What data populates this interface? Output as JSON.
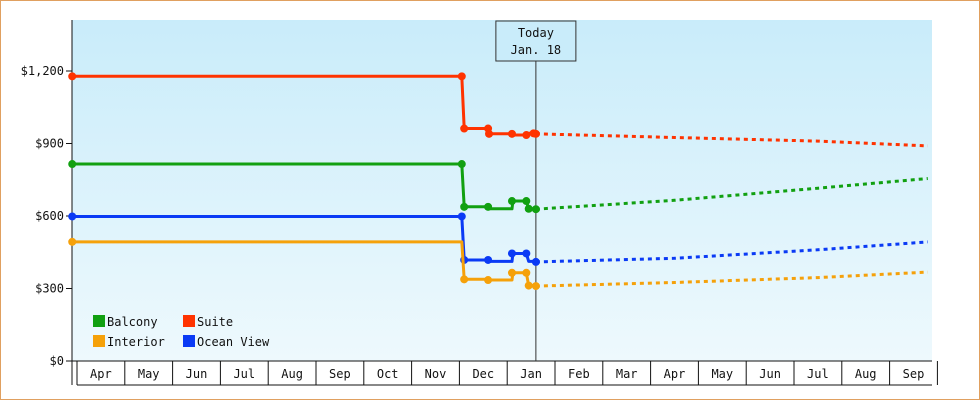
{
  "chart_data": {
    "type": "line",
    "y_ticks": [
      "$0",
      "$300",
      "$600",
      "$900",
      "$1,200"
    ],
    "y_tick_values": [
      0,
      300,
      600,
      900,
      1200
    ],
    "ylim": [
      0,
      1200
    ],
    "x_months": [
      "Apr",
      "May",
      "Jun",
      "Jul",
      "Aug",
      "Sep",
      "Oct",
      "Nov",
      "Dec",
      "Jan",
      "Feb",
      "Mar",
      "Apr",
      "May",
      "Jun",
      "Jul",
      "Aug",
      "Sep"
    ],
    "today": {
      "line1": "Today",
      "line2": "Jan. 18",
      "x": 9.6
    },
    "legend": [
      {
        "name": "Balcony",
        "color": "#11a011"
      },
      {
        "name": "Suite",
        "color": "#ff3300"
      },
      {
        "name": "Interior",
        "color": "#f5a10a"
      },
      {
        "name": "Ocean View",
        "color": "#0a3af5"
      }
    ],
    "series": [
      {
        "name": "Suite",
        "color": "#ff3300",
        "history": [
          [
            -0.1,
            1178
          ],
          [
            8.05,
            1178
          ],
          [
            8.1,
            962
          ],
          [
            8.6,
            962
          ],
          [
            8.62,
            940
          ],
          [
            9.1,
            940
          ],
          [
            9.12,
            935
          ],
          [
            9.4,
            935
          ],
          [
            9.45,
            942
          ],
          [
            9.55,
            942
          ],
          [
            9.6,
            940
          ]
        ],
        "markers": [
          [
            -0.1,
            1178
          ],
          [
            8.05,
            1178
          ],
          [
            8.1,
            962
          ],
          [
            8.6,
            962
          ],
          [
            8.62,
            940
          ],
          [
            9.1,
            940
          ],
          [
            9.4,
            935
          ],
          [
            9.55,
            942
          ],
          [
            9.6,
            940
          ]
        ],
        "forecast": [
          [
            9.6,
            940
          ],
          [
            12.5,
            925
          ],
          [
            15.5,
            910
          ],
          [
            17.8,
            890
          ]
        ]
      },
      {
        "name": "Balcony",
        "color": "#11a011",
        "history": [
          [
            -0.1,
            815
          ],
          [
            8.05,
            815
          ],
          [
            8.1,
            638
          ],
          [
            8.6,
            638
          ],
          [
            8.62,
            630
          ],
          [
            9.1,
            630
          ],
          [
            9.12,
            662
          ],
          [
            9.4,
            662
          ],
          [
            9.45,
            630
          ],
          [
            9.55,
            630
          ],
          [
            9.6,
            628
          ]
        ],
        "markers": [
          [
            -0.1,
            815
          ],
          [
            8.05,
            815
          ],
          [
            8.1,
            638
          ],
          [
            8.6,
            638
          ],
          [
            9.1,
            662
          ],
          [
            9.4,
            662
          ],
          [
            9.45,
            630
          ],
          [
            9.6,
            628
          ]
        ],
        "forecast": [
          [
            9.6,
            628
          ],
          [
            12.5,
            665
          ],
          [
            15.5,
            715
          ],
          [
            17.8,
            755
          ]
        ]
      },
      {
        "name": "Ocean View",
        "color": "#0a3af5",
        "history": [
          [
            -0.1,
            598
          ],
          [
            8.05,
            598
          ],
          [
            8.1,
            418
          ],
          [
            8.6,
            418
          ],
          [
            8.62,
            412
          ],
          [
            9.1,
            412
          ],
          [
            9.12,
            445
          ],
          [
            9.4,
            445
          ],
          [
            9.45,
            412
          ],
          [
            9.55,
            412
          ],
          [
            9.6,
            410
          ]
        ],
        "markers": [
          [
            -0.1,
            598
          ],
          [
            8.05,
            598
          ],
          [
            8.1,
            418
          ],
          [
            8.6,
            418
          ],
          [
            9.1,
            445
          ],
          [
            9.4,
            445
          ],
          [
            9.6,
            410
          ]
        ],
        "forecast": [
          [
            9.6,
            410
          ],
          [
            12.5,
            425
          ],
          [
            15.5,
            460
          ],
          [
            17.8,
            493
          ]
        ]
      },
      {
        "name": "Interior",
        "color": "#f5a10a",
        "history": [
          [
            -0.1,
            493
          ],
          [
            8.05,
            493
          ],
          [
            8.1,
            338
          ],
          [
            8.6,
            338
          ],
          [
            8.62,
            335
          ],
          [
            9.1,
            335
          ],
          [
            9.12,
            365
          ],
          [
            9.4,
            365
          ],
          [
            9.45,
            312
          ],
          [
            9.55,
            312
          ],
          [
            9.6,
            310
          ]
        ],
        "markers": [
          [
            -0.1,
            493
          ],
          [
            8.1,
            338
          ],
          [
            8.6,
            335
          ],
          [
            9.1,
            365
          ],
          [
            9.4,
            365
          ],
          [
            9.45,
            312
          ],
          [
            9.6,
            310
          ]
        ],
        "forecast": [
          [
            9.6,
            310
          ],
          [
            12.5,
            325
          ],
          [
            15.5,
            345
          ],
          [
            17.8,
            368
          ]
        ]
      }
    ]
  }
}
